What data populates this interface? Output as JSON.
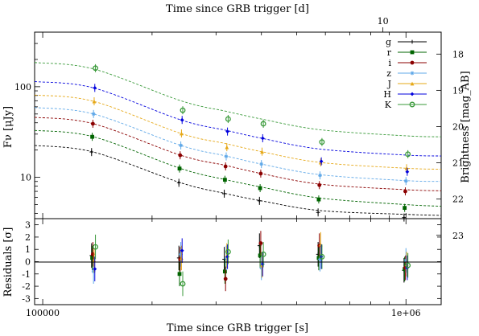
{
  "chart_data": {
    "type": "scatter",
    "title": "",
    "top_axis_label": "Time since GRB trigger [d]",
    "top_tick_labels": [
      "10"
    ],
    "xlabel": "Time since GRB trigger [s]",
    "ylabel": "Fν [μJy]",
    "right_ylabel": "Brightness [mag_AB]",
    "residual_ylabel": "Residuals [σ]",
    "x_scale": "log",
    "y_scale": "log",
    "xlim": [
      95000,
      1250000
    ],
    "ylim": [
      3.5,
      400
    ],
    "residual_ylim": [
      -3.5,
      3.5
    ],
    "legend_position": "top-right",
    "x_tick_labels": [
      {
        "value": 100000,
        "label": "100000"
      },
      {
        "value": 1000000,
        "label": "1e+06"
      }
    ],
    "y_tick_labels": [
      {
        "value": 10,
        "label": "10"
      },
      {
        "value": 100,
        "label": "100"
      }
    ],
    "mag_tick_labels": [
      "18",
      "19",
      "20",
      "21",
      "22",
      "23"
    ],
    "residual_tick_labels": [
      "3",
      "2",
      "1",
      "0",
      "-1",
      "-2",
      "-3"
    ],
    "epochs": [
      138000,
      240000,
      320000,
      400000,
      580000,
      1000000
    ],
    "series": [
      {
        "name": "g",
        "color": "#000000",
        "marker": "plus",
        "model": [
          [
            95000,
            22.5
          ],
          [
            138000,
            19.0
          ],
          [
            240000,
            8.7
          ],
          [
            320000,
            6.6
          ],
          [
            400000,
            5.5
          ],
          [
            580000,
            4.3
          ],
          [
            1000000,
            3.9
          ],
          [
            1250000,
            3.8
          ]
        ],
        "flux": [
          19,
          8.7,
          6.6,
          5.5,
          4.1,
          3.6
        ],
        "residuals": [
          0.5,
          0.3,
          0.2,
          1.3,
          0.6,
          -0.7
        ]
      },
      {
        "name": "r",
        "color": "#006400",
        "marker": "square",
        "model": [
          [
            95000,
            33
          ],
          [
            138000,
            28
          ],
          [
            240000,
            12.5
          ],
          [
            320000,
            9.4
          ],
          [
            400000,
            7.8
          ],
          [
            580000,
            5.9
          ],
          [
            1000000,
            5.0
          ],
          [
            1250000,
            4.8
          ]
        ],
        "flux": [
          28,
          12.5,
          9.4,
          7.6,
          5.7,
          4.6
        ],
        "residuals": [
          0.3,
          -1.0,
          -0.8,
          0.5,
          0.3,
          -0.6
        ]
      },
      {
        "name": "i",
        "color": "#8b0000",
        "marker": "circle",
        "model": [
          [
            95000,
            46
          ],
          [
            138000,
            39
          ],
          [
            240000,
            17.5
          ],
          [
            320000,
            13.5
          ],
          [
            400000,
            11.0
          ],
          [
            580000,
            8.4
          ],
          [
            1000000,
            7.3
          ],
          [
            1250000,
            7.1
          ]
        ],
        "flux": [
          39,
          17.5,
          13.2,
          11.0,
          8.2,
          7.0
        ],
        "residuals": [
          0.6,
          0.2,
          -1.4,
          1.5,
          1.3,
          -0.5
        ]
      },
      {
        "name": "z",
        "color": "#5fa8e8",
        "marker": "star",
        "model": [
          [
            95000,
            59
          ],
          [
            138000,
            50
          ],
          [
            240000,
            22.5
          ],
          [
            320000,
            17.2
          ],
          [
            400000,
            14.0
          ],
          [
            580000,
            10.7
          ],
          [
            1000000,
            9.2
          ],
          [
            1250000,
            9.0
          ]
        ],
        "flux": [
          50,
          22.5,
          17.0,
          14.0,
          10.5,
          9.1
        ],
        "residuals": [
          -0.8,
          0.6,
          0.3,
          -0.5,
          0.2,
          0.1
        ]
      },
      {
        "name": "J",
        "color": "#e6a817",
        "marker": "triangle",
        "model": [
          [
            95000,
            81
          ],
          [
            138000,
            69
          ],
          [
            240000,
            30.5
          ],
          [
            320000,
            23.5
          ],
          [
            400000,
            19.2
          ],
          [
            580000,
            14.6
          ],
          [
            1000000,
            12.6
          ],
          [
            1250000,
            12.3
          ]
        ],
        "flux": [
          69,
          30.5,
          21.5,
          19.2,
          14.6,
          12.6
        ],
        "residuals": [
          0.1,
          0.3,
          0.5,
          -0.3,
          1.4,
          -0.2
        ]
      },
      {
        "name": "H",
        "color": "#0000dd",
        "marker": "diamond",
        "model": [
          [
            95000,
            114
          ],
          [
            138000,
            97
          ],
          [
            240000,
            43
          ],
          [
            320000,
            33
          ],
          [
            400000,
            27
          ],
          [
            580000,
            20.5
          ],
          [
            1000000,
            17.6
          ],
          [
            1250000,
            17.2
          ]
        ],
        "flux": [
          97,
          43,
          32,
          27,
          15,
          11.5
        ],
        "residuals": [
          -0.6,
          0.9,
          0.4,
          -0.2,
          0.4,
          -0.5
        ]
      },
      {
        "name": "K",
        "color": "#3a9a3a",
        "marker": "circle-open",
        "model": [
          [
            95000,
            185
          ],
          [
            138000,
            157
          ],
          [
            240000,
            70
          ],
          [
            320000,
            53.5
          ],
          [
            400000,
            44
          ],
          [
            580000,
            33.5
          ],
          [
            1000000,
            28.7
          ],
          [
            1250000,
            28.0
          ]
        ],
        "flux": [
          160,
          55,
          44,
          39,
          24.5,
          18
        ],
        "residuals": [
          1.2,
          -1.8,
          0.8,
          0.6,
          0.4,
          -0.3
        ]
      }
    ]
  }
}
